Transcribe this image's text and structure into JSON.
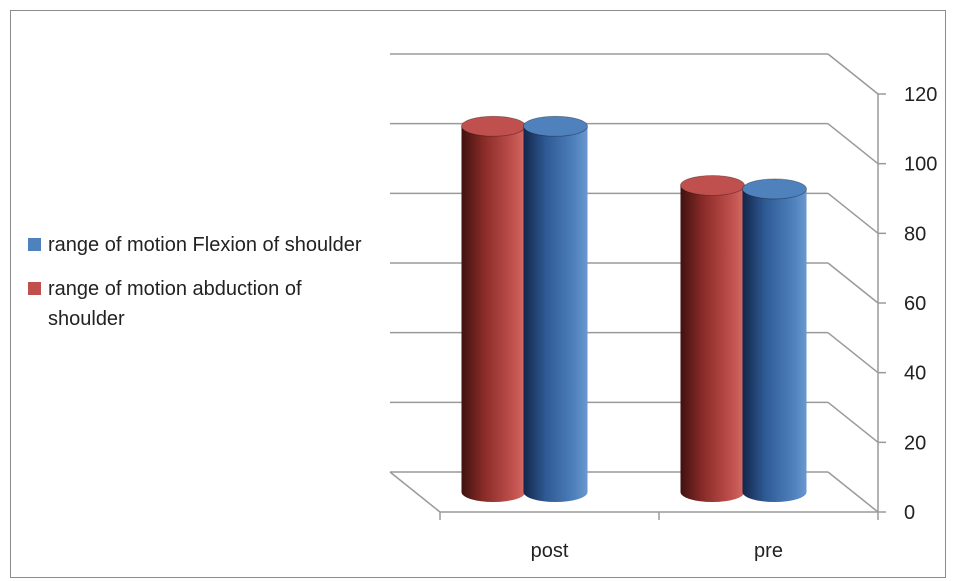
{
  "chart_data": {
    "type": "bar",
    "categories": [
      "post",
      "pre"
    ],
    "series": [
      {
        "name": "range of motion abduction of shoulder",
        "values": [
          105,
          88
        ],
        "color": "#c0504d"
      },
      {
        "name": "range of motion Flexion of shoulder",
        "values": [
          105,
          87
        ],
        "color": "#4f81bd"
      }
    ],
    "ylim": [
      0,
      120
    ],
    "yticks": [
      0,
      20,
      40,
      60,
      80,
      100,
      120
    ],
    "grid": true,
    "legend_position": "left",
    "legend_order": [
      1,
      0
    ],
    "title": "",
    "xlabel": "",
    "ylabel": ""
  }
}
